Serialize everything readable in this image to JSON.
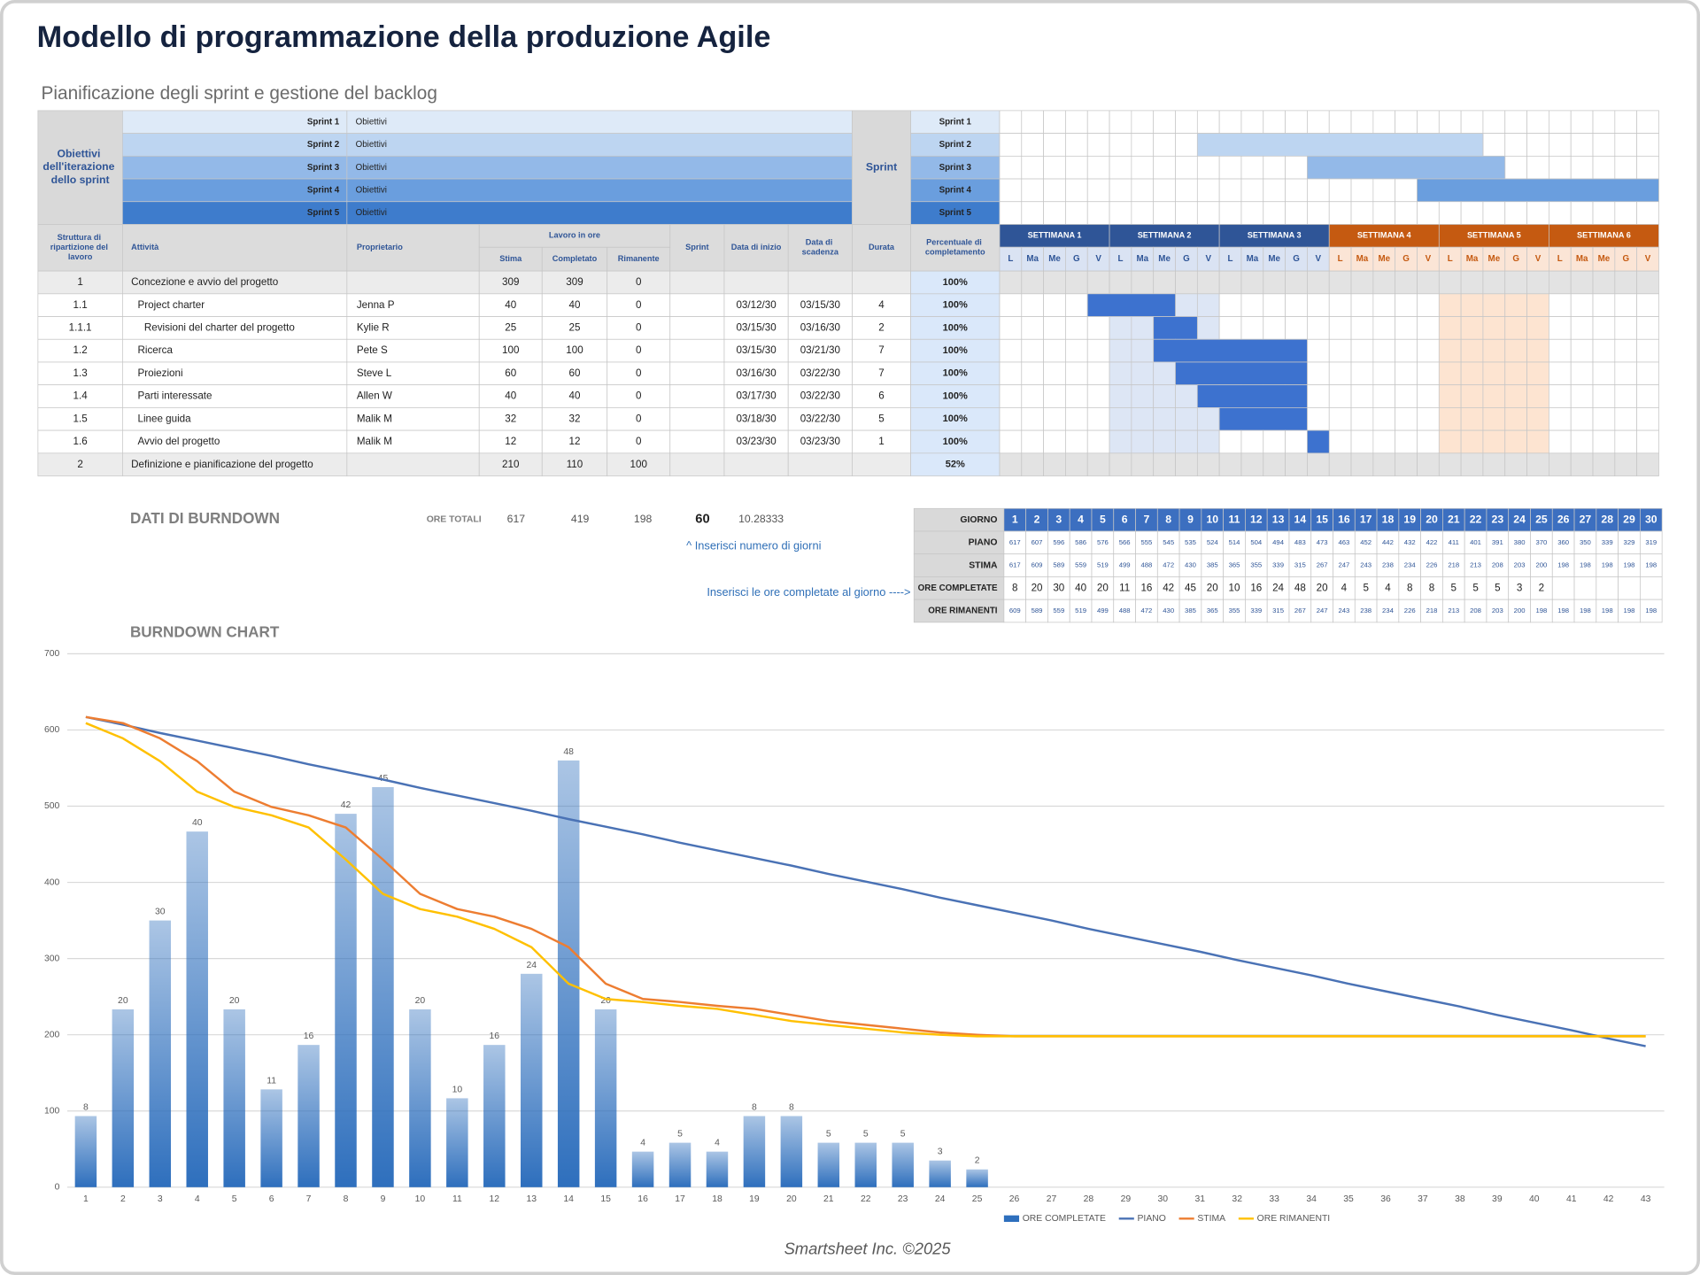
{
  "header": {
    "title": "Modello di programmazione della produzione Agile",
    "subtitle": "Pianificazione degli sprint e gestione del backlog"
  },
  "sprint_objectives": {
    "label": "Obiettivi dell'iterazione dello sprint",
    "rows": [
      {
        "sprint": "Sprint 1",
        "objective": "Obiettivi"
      },
      {
        "sprint": "Sprint 2",
        "objective": "Obiettivi"
      },
      {
        "sprint": "Sprint 3",
        "objective": "Obiettivi"
      },
      {
        "sprint": "Sprint 4",
        "objective": "Obiettivi"
      },
      {
        "sprint": "Sprint 5",
        "objective": "Obiettivi"
      }
    ]
  },
  "sprint_plan": {
    "label": "Sprint",
    "rows": [
      {
        "sprint": "Sprint 1"
      },
      {
        "sprint": "Sprint 2",
        "days": [
          10,
          22
        ]
      },
      {
        "sprint": "Sprint 3",
        "days": [
          15,
          23
        ]
      },
      {
        "sprint": "Sprint 4",
        "days": [
          20,
          30
        ]
      },
      {
        "sprint": "Sprint 5"
      }
    ]
  },
  "task_table": {
    "headers": {
      "wbs": "Struttura di ripartizione del lavoro",
      "task": "Attività",
      "owner": "Proprietario",
      "work": "Lavoro in ore",
      "estimate": "Stima",
      "completed": "Completato",
      "remaining": "Rimanente",
      "sprint": "Sprint",
      "start": "Data di inizio",
      "due": "Data di scadenza",
      "duration": "Durata",
      "percent": "Percentuale di completamento"
    },
    "weeks": [
      "SETTIMANA 1",
      "SETTIMANA 2",
      "SETTIMANA 3",
      "SETTIMANA 4",
      "SETTIMANA 5",
      "SETTIMANA 6"
    ],
    "days": [
      "L",
      "Ma",
      "Me",
      "G",
      "V"
    ],
    "rows": [
      {
        "wbs": "1",
        "task": "Concezione e avvio del progetto",
        "estimate": 309,
        "completed": 309,
        "remaining": 0,
        "percent": "100%"
      },
      {
        "wbs": "1.1",
        "task": "Project charter",
        "owner": "Jenna P",
        "estimate": 40,
        "completed": 40,
        "remaining": 0,
        "start": "03/12/30",
        "due": "03/15/30",
        "duration": 4,
        "percent": "100%",
        "days": [
          5,
          8
        ]
      },
      {
        "wbs": "1.1.1",
        "task": "Revisioni del charter del progetto",
        "owner": "Kylie R",
        "estimate": 25,
        "completed": 25,
        "remaining": 0,
        "start": "03/15/30",
        "due": "03/16/30",
        "duration": 2,
        "percent": "100%",
        "days": [
          8,
          9
        ]
      },
      {
        "wbs": "1.2",
        "task": "Ricerca",
        "owner": "Pete S",
        "estimate": 100,
        "completed": 100,
        "remaining": 0,
        "start": "03/15/30",
        "due": "03/21/30",
        "duration": 7,
        "percent": "100%",
        "days": [
          8,
          14
        ]
      },
      {
        "wbs": "1.3",
        "task": "Proiezioni",
        "owner": "Steve L",
        "estimate": 60,
        "completed": 60,
        "remaining": 0,
        "start": "03/16/30",
        "due": "03/22/30",
        "duration": 7,
        "percent": "100%",
        "days": [
          9,
          14
        ]
      },
      {
        "wbs": "1.4",
        "task": "Parti interessate",
        "owner": "Allen W",
        "estimate": 40,
        "completed": 40,
        "remaining": 0,
        "start": "03/17/30",
        "due": "03/22/30",
        "duration": 6,
        "percent": "100%",
        "days": [
          10,
          14
        ]
      },
      {
        "wbs": "1.5",
        "task": "Linee guida",
        "owner": "Malik M",
        "estimate": 32,
        "completed": 32,
        "remaining": 0,
        "start": "03/18/30",
        "due": "03/22/30",
        "duration": 5,
        "percent": "100%",
        "days": [
          11,
          14
        ]
      },
      {
        "wbs": "1.6",
        "task": "Avvio del progetto",
        "owner": "Malik M",
        "estimate": 12,
        "completed": 12,
        "remaining": 0,
        "start": "03/23/30",
        "due": "03/23/30",
        "duration": 1,
        "percent": "100%",
        "days": [
          15,
          15
        ]
      },
      {
        "wbs": "2",
        "task": "Definizione e pianificazione del progetto",
        "estimate": 210,
        "completed": 110,
        "remaining": 100,
        "percent": "52%"
      }
    ]
  },
  "burndown_data": {
    "title": "DATI DI BURNDOWN",
    "totals_label": "ORE TOTALI",
    "totals": [
      617,
      419,
      198
    ],
    "days_count": 60,
    "daily_rate": 10.28333,
    "days_hint": "^ Inserisci numero di giorni",
    "completed_hint": "Inserisci le ore completate al giorno ---->",
    "row_labels": {
      "day": "GIORNO",
      "plan": "PIANO",
      "estimate": "STIMA",
      "completed": "ORE COMPLETATE",
      "remaining": "ORE RIMANENTI"
    },
    "day": [
      1,
      2,
      3,
      4,
      5,
      6,
      7,
      8,
      9,
      10,
      11,
      12,
      13,
      14,
      15,
      16,
      17,
      18,
      19,
      20,
      21,
      22,
      23,
      24,
      25,
      26,
      27,
      28,
      29,
      30
    ],
    "plan": [
      617,
      607,
      596,
      586,
      576,
      566,
      555,
      545,
      535,
      524,
      514,
      504,
      494,
      483,
      473,
      463,
      452,
      442,
      432,
      422,
      411,
      401,
      391,
      380,
      370,
      360,
      350,
      339,
      329,
      319
    ],
    "estimate": [
      617,
      609,
      589,
      559,
      519,
      499,
      488,
      472,
      430,
      385,
      365,
      355,
      339,
      315,
      267,
      247,
      243,
      238,
      234,
      226,
      218,
      213,
      208,
      203,
      200,
      198,
      198,
      198,
      198,
      198
    ],
    "completed": [
      8,
      20,
      30,
      40,
      20,
      11,
      16,
      42,
      45,
      20,
      10,
      16,
      24,
      48,
      20,
      4,
      5,
      4,
      8,
      8,
      5,
      5,
      5,
      3,
      2,
      null,
      null,
      null,
      null,
      null
    ],
    "remaining": [
      609,
      589,
      559,
      519,
      499,
      488,
      472,
      430,
      385,
      365,
      355,
      339,
      315,
      267,
      247,
      243,
      238,
      234,
      226,
      218,
      213,
      208,
      203,
      200,
      198,
      198,
      198,
      198,
      198,
      198
    ]
  },
  "chart_data": {
    "type": "combo",
    "title": "BURNDOWN CHART",
    "categories": [
      1,
      2,
      3,
      4,
      5,
      6,
      7,
      8,
      9,
      10,
      11,
      12,
      13,
      14,
      15,
      16,
      17,
      18,
      19,
      20,
      21,
      22,
      23,
      24,
      25,
      26,
      27,
      28,
      29,
      30,
      31,
      32,
      33,
      34,
      35,
      36,
      37,
      38,
      39,
      40,
      41,
      42,
      43
    ],
    "ylim": [
      0,
      700
    ],
    "yticks": [
      0,
      100,
      200,
      300,
      400,
      500,
      600,
      700
    ],
    "y2lim": [
      0,
      60
    ],
    "grid": true,
    "legend": "bottom",
    "series": [
      {
        "name": "ORE COMPLETATE",
        "type": "bar",
        "axis": "y2",
        "color": "#2e6fbd",
        "values": [
          8,
          20,
          30,
          40,
          20,
          11,
          16,
          42,
          45,
          20,
          10,
          16,
          24,
          48,
          20,
          4,
          5,
          4,
          8,
          8,
          5,
          5,
          5,
          3,
          2,
          null,
          null,
          null,
          null,
          null,
          null,
          null,
          null,
          null,
          null,
          null,
          null,
          null,
          null,
          null,
          null,
          null,
          null
        ]
      },
      {
        "name": "PIANO",
        "type": "line",
        "color": "#4a72b5",
        "values": [
          617,
          607,
          596,
          586,
          576,
          566,
          555,
          545,
          535,
          524,
          514,
          504,
          494,
          483,
          473,
          463,
          452,
          442,
          432,
          422,
          411,
          401,
          391,
          380,
          370,
          360,
          350,
          339,
          329,
          319,
          309,
          298,
          288,
          278,
          267,
          257,
          247,
          237,
          226,
          216,
          206,
          195,
          185
        ]
      },
      {
        "name": "STIMA",
        "type": "line",
        "color": "#ed7d31",
        "values": [
          617,
          609,
          589,
          559,
          519,
          499,
          488,
          472,
          430,
          385,
          365,
          355,
          339,
          315,
          267,
          247,
          243,
          238,
          234,
          226,
          218,
          213,
          208,
          203,
          200,
          198,
          198,
          198,
          198,
          198,
          198,
          198,
          198,
          198,
          198,
          198,
          198,
          198,
          198,
          198,
          198,
          198,
          198
        ]
      },
      {
        "name": "ORE RIMANENTI",
        "type": "line",
        "color": "#ffc000",
        "values": [
          609,
          589,
          559,
          519,
          499,
          488,
          472,
          430,
          385,
          365,
          355,
          339,
          315,
          267,
          247,
          243,
          238,
          234,
          226,
          218,
          213,
          208,
          203,
          200,
          198,
          198,
          198,
          198,
          198,
          198,
          198,
          198,
          198,
          198,
          198,
          198,
          198,
          198,
          198,
          198,
          198,
          198,
          198
        ]
      }
    ]
  },
  "footer": {
    "text": "Smartsheet Inc. ©2025"
  }
}
